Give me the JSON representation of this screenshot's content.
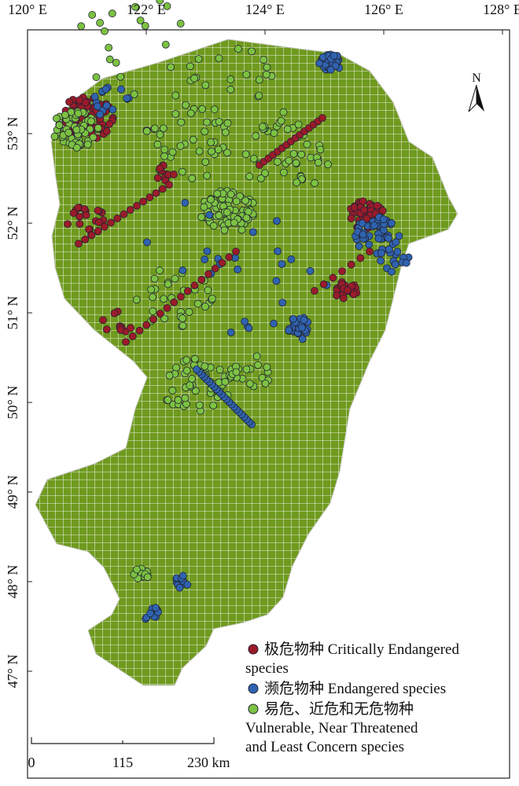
{
  "longitude_labels": [
    "120° E",
    "122° E",
    "124° E",
    "126° E",
    "128° E"
  ],
  "latitude_labels": [
    "53° N",
    "52° N",
    "51° N",
    "50° N",
    "49° N",
    "48° N",
    "47° N"
  ],
  "north_arrow": "N",
  "legend": [
    {
      "lines": [
        "极危物种 Critically Endangered",
        "species"
      ]
    },
    {
      "lines": [
        "濒危物种  Endangered species"
      ]
    },
    {
      "lines": [
        "易危、近危和无危物种",
        "Vulnerable, Near Threatened",
        "and Least Concern species"
      ]
    }
  ],
  "scale_bar": [
    "0",
    "115",
    "230 km"
  ]
}
